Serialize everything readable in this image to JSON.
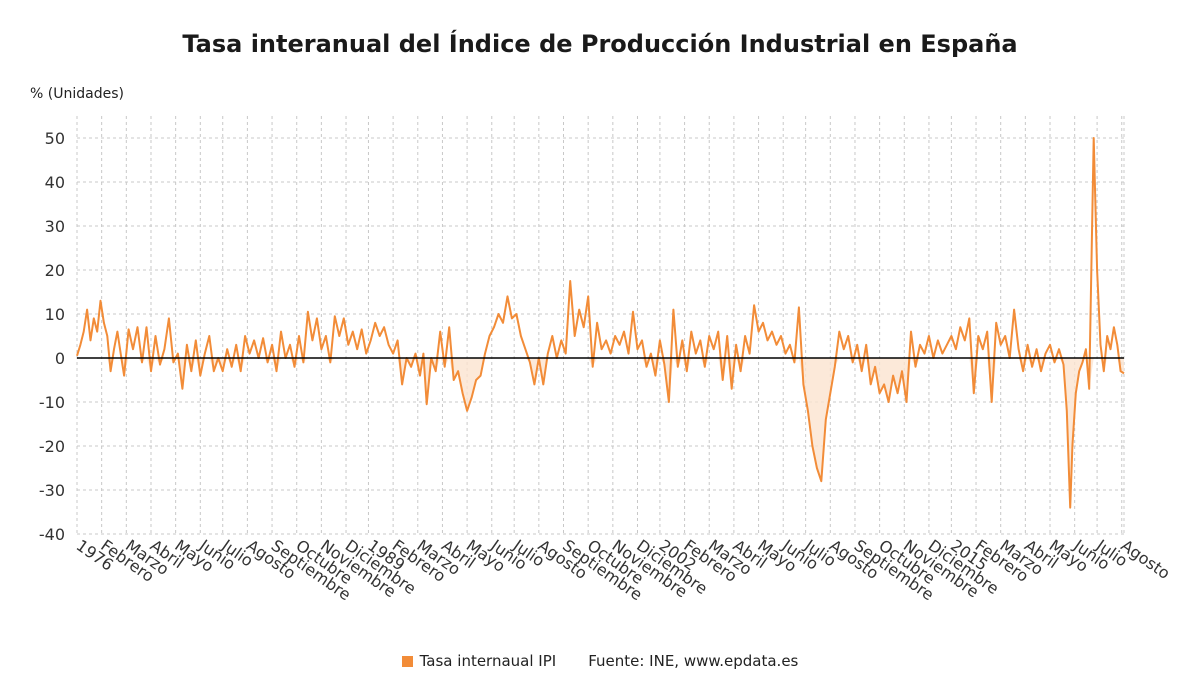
{
  "chart_data": {
    "type": "line",
    "title": "Tasa interanual del Índice de Producción Industrial en España",
    "ylabel": "% (Unidades)",
    "xlabel": "",
    "ylim": [
      -40,
      55
    ],
    "yticks": [
      50,
      40,
      30,
      20,
      10,
      0,
      -10,
      -20,
      -30,
      -40
    ],
    "xlim": [
      1976.0,
      2022.7
    ],
    "grid": true,
    "x_tick_labels": [
      {
        "x": 1976.0,
        "label": "1976"
      },
      {
        "x": 1977.1,
        "label": "Febrero"
      },
      {
        "x": 1978.2,
        "label": "Marzo"
      },
      {
        "x": 1979.3,
        "label": "Abril"
      },
      {
        "x": 1980.4,
        "label": "Mayo"
      },
      {
        "x": 1981.5,
        "label": "Junio"
      },
      {
        "x": 1982.5,
        "label": "Julio"
      },
      {
        "x": 1983.6,
        "label": "Agosto"
      },
      {
        "x": 1984.7,
        "label": "Septiembre"
      },
      {
        "x": 1985.8,
        "label": "Octubre"
      },
      {
        "x": 1986.9,
        "label": "Noviembre"
      },
      {
        "x": 1988.0,
        "label": "Diciembre"
      },
      {
        "x": 1989.0,
        "label": "1989"
      },
      {
        "x": 1990.1,
        "label": "Febrero"
      },
      {
        "x": 1991.2,
        "label": "Marzo"
      },
      {
        "x": 1992.3,
        "label": "Abril"
      },
      {
        "x": 1993.4,
        "label": "Mayo"
      },
      {
        "x": 1994.5,
        "label": "Junio"
      },
      {
        "x": 1995.5,
        "label": "Julio"
      },
      {
        "x": 1996.6,
        "label": "Agosto"
      },
      {
        "x": 1997.7,
        "label": "Septiembre"
      },
      {
        "x": 1998.8,
        "label": "Octubre"
      },
      {
        "x": 1999.9,
        "label": "Noviembre"
      },
      {
        "x": 2001.0,
        "label": "Diciembre"
      },
      {
        "x": 2002.0,
        "label": "2002"
      },
      {
        "x": 2003.1,
        "label": "Febrero"
      },
      {
        "x": 2004.2,
        "label": "Marzo"
      },
      {
        "x": 2005.3,
        "label": "Abril"
      },
      {
        "x": 2006.4,
        "label": "Mayo"
      },
      {
        "x": 2007.5,
        "label": "Junio"
      },
      {
        "x": 2008.5,
        "label": "Julio"
      },
      {
        "x": 2009.6,
        "label": "Agosto"
      },
      {
        "x": 2010.7,
        "label": "Septiembre"
      },
      {
        "x": 2011.8,
        "label": "Octubre"
      },
      {
        "x": 2012.9,
        "label": "Noviembre"
      },
      {
        "x": 2014.0,
        "label": "Diciembre"
      },
      {
        "x": 2015.0,
        "label": "2015"
      },
      {
        "x": 2016.1,
        "label": "Febrero"
      },
      {
        "x": 2017.2,
        "label": "Marzo"
      },
      {
        "x": 2018.3,
        "label": "Abril"
      },
      {
        "x": 2019.4,
        "label": "Mayo"
      },
      {
        "x": 2020.5,
        "label": "Junio"
      },
      {
        "x": 2021.5,
        "label": "Julio"
      },
      {
        "x": 2022.6,
        "label": "Agosto"
      }
    ],
    "series": [
      {
        "name": "Tasa internaual IPI",
        "color": "#f28c38",
        "points": [
          [
            1976.0,
            0.5
          ],
          [
            1976.15,
            3.0
          ],
          [
            1976.3,
            6.0
          ],
          [
            1976.45,
            11.0
          ],
          [
            1976.6,
            4.0
          ],
          [
            1976.75,
            9.0
          ],
          [
            1976.9,
            6.0
          ],
          [
            1977.05,
            13.0
          ],
          [
            1977.2,
            8.0
          ],
          [
            1977.35,
            5.0
          ],
          [
            1977.5,
            -3.0
          ],
          [
            1977.65,
            2.0
          ],
          [
            1977.8,
            6.0
          ],
          [
            1977.95,
            1.0
          ],
          [
            1978.1,
            -4.0
          ],
          [
            1978.3,
            6.5
          ],
          [
            1978.5,
            2.0
          ],
          [
            1978.7,
            7.0
          ],
          [
            1978.9,
            -1.0
          ],
          [
            1979.1,
            7.0
          ],
          [
            1979.3,
            -3.0
          ],
          [
            1979.5,
            5.0
          ],
          [
            1979.7,
            -1.5
          ],
          [
            1979.9,
            2.0
          ],
          [
            1980.1,
            9.0
          ],
          [
            1980.3,
            -1.0
          ],
          [
            1980.5,
            1.0
          ],
          [
            1980.7,
            -7.0
          ],
          [
            1980.9,
            3.0
          ],
          [
            1981.1,
            -3.0
          ],
          [
            1981.3,
            4.0
          ],
          [
            1981.5,
            -4.0
          ],
          [
            1981.7,
            1.0
          ],
          [
            1981.9,
            5.0
          ],
          [
            1982.1,
            -3.0
          ],
          [
            1982.3,
            0.0
          ],
          [
            1982.5,
            -3.0
          ],
          [
            1982.7,
            2.0
          ],
          [
            1982.9,
            -2.0
          ],
          [
            1983.1,
            3.0
          ],
          [
            1983.3,
            -3.0
          ],
          [
            1983.5,
            5.0
          ],
          [
            1983.7,
            1.0
          ],
          [
            1983.9,
            4.0
          ],
          [
            1984.1,
            0.0
          ],
          [
            1984.3,
            4.5
          ],
          [
            1984.5,
            -1.0
          ],
          [
            1984.7,
            3.0
          ],
          [
            1984.9,
            -3.0
          ],
          [
            1985.1,
            6.0
          ],
          [
            1985.3,
            0.0
          ],
          [
            1985.5,
            3.0
          ],
          [
            1985.7,
            -2.0
          ],
          [
            1985.9,
            5.0
          ],
          [
            1986.1,
            -1.0
          ],
          [
            1986.3,
            10.5
          ],
          [
            1986.5,
            4.0
          ],
          [
            1986.7,
            9.0
          ],
          [
            1986.9,
            2.0
          ],
          [
            1987.1,
            5.0
          ],
          [
            1987.3,
            -1.0
          ],
          [
            1987.5,
            9.5
          ],
          [
            1987.7,
            5.0
          ],
          [
            1987.9,
            9.0
          ],
          [
            1988.1,
            3.0
          ],
          [
            1988.3,
            6.0
          ],
          [
            1988.5,
            2.0
          ],
          [
            1988.7,
            6.5
          ],
          [
            1988.9,
            1.0
          ],
          [
            1989.1,
            4.0
          ],
          [
            1989.3,
            8.0
          ],
          [
            1989.5,
            5.0
          ],
          [
            1989.7,
            7.0
          ],
          [
            1989.9,
            3.0
          ],
          [
            1990.1,
            1.0
          ],
          [
            1990.3,
            4.0
          ],
          [
            1990.5,
            -6.0
          ],
          [
            1990.7,
            0.0
          ],
          [
            1990.9,
            -2.0
          ],
          [
            1991.1,
            1.0
          ],
          [
            1991.3,
            -4.0
          ],
          [
            1991.45,
            1.0
          ],
          [
            1991.6,
            -10.5
          ],
          [
            1991.8,
            0.0
          ],
          [
            1992.0,
            -3.0
          ],
          [
            1992.2,
            6.0
          ],
          [
            1992.4,
            -2.0
          ],
          [
            1992.6,
            7.0
          ],
          [
            1992.8,
            -5.0
          ],
          [
            1993.0,
            -3.0
          ],
          [
            1993.2,
            -8.0
          ],
          [
            1993.4,
            -12.0
          ],
          [
            1993.6,
            -9.0
          ],
          [
            1993.8,
            -5.0
          ],
          [
            1994.0,
            -4.0
          ],
          [
            1994.2,
            1.0
          ],
          [
            1994.4,
            5.0
          ],
          [
            1994.6,
            7.0
          ],
          [
            1994.8,
            10.0
          ],
          [
            1995.0,
            8.0
          ],
          [
            1995.2,
            14.0
          ],
          [
            1995.4,
            9.0
          ],
          [
            1995.6,
            10.0
          ],
          [
            1995.8,
            5.0
          ],
          [
            1996.0,
            2.0
          ],
          [
            1996.2,
            -1.0
          ],
          [
            1996.4,
            -6.0
          ],
          [
            1996.6,
            0.0
          ],
          [
            1996.8,
            -6.0
          ],
          [
            1997.0,
            1.0
          ],
          [
            1997.2,
            5.0
          ],
          [
            1997.4,
            0.0
          ],
          [
            1997.6,
            4.0
          ],
          [
            1997.8,
            1.0
          ],
          [
            1998.0,
            17.5
          ],
          [
            1998.2,
            5.0
          ],
          [
            1998.4,
            11.0
          ],
          [
            1998.6,
            7.0
          ],
          [
            1998.8,
            14.0
          ],
          [
            1999.0,
            -2.0
          ],
          [
            1999.2,
            8.0
          ],
          [
            1999.4,
            2.0
          ],
          [
            1999.6,
            4.0
          ],
          [
            1999.8,
            1.0
          ],
          [
            2000.0,
            5.0
          ],
          [
            2000.2,
            3.0
          ],
          [
            2000.4,
            6.0
          ],
          [
            2000.6,
            1.0
          ],
          [
            2000.8,
            10.5
          ],
          [
            2001.0,
            2.0
          ],
          [
            2001.2,
            4.0
          ],
          [
            2001.4,
            -2.0
          ],
          [
            2001.6,
            1.0
          ],
          [
            2001.8,
            -4.0
          ],
          [
            2002.0,
            4.0
          ],
          [
            2002.2,
            -1.5
          ],
          [
            2002.4,
            -10.0
          ],
          [
            2002.6,
            11.0
          ],
          [
            2002.8,
            -2.0
          ],
          [
            2003.0,
            4.0
          ],
          [
            2003.2,
            -3.0
          ],
          [
            2003.4,
            6.0
          ],
          [
            2003.6,
            1.0
          ],
          [
            2003.8,
            4.0
          ],
          [
            2004.0,
            -2.0
          ],
          [
            2004.2,
            5.0
          ],
          [
            2004.4,
            2.0
          ],
          [
            2004.6,
            6.0
          ],
          [
            2004.8,
            -5.0
          ],
          [
            2005.0,
            5.0
          ],
          [
            2005.2,
            -7.0
          ],
          [
            2005.4,
            3.0
          ],
          [
            2005.6,
            -3.0
          ],
          [
            2005.8,
            5.0
          ],
          [
            2006.0,
            1.0
          ],
          [
            2006.2,
            12.0
          ],
          [
            2006.4,
            6.0
          ],
          [
            2006.6,
            8.0
          ],
          [
            2006.8,
            4.0
          ],
          [
            2007.0,
            6.0
          ],
          [
            2007.2,
            3.0
          ],
          [
            2007.4,
            5.0
          ],
          [
            2007.6,
            1.0
          ],
          [
            2007.8,
            3.0
          ],
          [
            2008.0,
            -1.0
          ],
          [
            2008.2,
            11.5
          ],
          [
            2008.4,
            -6.0
          ],
          [
            2008.6,
            -12.0
          ],
          [
            2008.8,
            -20.0
          ],
          [
            2009.0,
            -25.0
          ],
          [
            2009.2,
            -28.0
          ],
          [
            2009.4,
            -14.0
          ],
          [
            2009.6,
            -8.0
          ],
          [
            2009.8,
            -2.0
          ],
          [
            2010.0,
            6.0
          ],
          [
            2010.2,
            2.0
          ],
          [
            2010.4,
            5.0
          ],
          [
            2010.6,
            -1.0
          ],
          [
            2010.8,
            3.0
          ],
          [
            2011.0,
            -3.0
          ],
          [
            2011.2,
            3.0
          ],
          [
            2011.4,
            -6.0
          ],
          [
            2011.6,
            -2.0
          ],
          [
            2011.8,
            -8.0
          ],
          [
            2012.0,
            -6.0
          ],
          [
            2012.2,
            -10.0
          ],
          [
            2012.4,
            -4.0
          ],
          [
            2012.6,
            -8.0
          ],
          [
            2012.8,
            -3.0
          ],
          [
            2013.0,
            -10.0
          ],
          [
            2013.2,
            6.0
          ],
          [
            2013.4,
            -2.0
          ],
          [
            2013.6,
            3.0
          ],
          [
            2013.8,
            1.0
          ],
          [
            2014.0,
            5.0
          ],
          [
            2014.2,
            0.0
          ],
          [
            2014.4,
            4.0
          ],
          [
            2014.6,
            1.0
          ],
          [
            2014.8,
            3.0
          ],
          [
            2015.0,
            5.0
          ],
          [
            2015.2,
            2.0
          ],
          [
            2015.4,
            7.0
          ],
          [
            2015.6,
            4.0
          ],
          [
            2015.8,
            9.0
          ],
          [
            2016.0,
            -8.0
          ],
          [
            2016.2,
            5.0
          ],
          [
            2016.4,
            2.0
          ],
          [
            2016.6,
            6.0
          ],
          [
            2016.8,
            -10.0
          ],
          [
            2017.0,
            8.0
          ],
          [
            2017.2,
            3.0
          ],
          [
            2017.4,
            5.0
          ],
          [
            2017.6,
            0.0
          ],
          [
            2017.8,
            11.0
          ],
          [
            2018.0,
            2.0
          ],
          [
            2018.2,
            -3.0
          ],
          [
            2018.4,
            3.0
          ],
          [
            2018.6,
            -2.0
          ],
          [
            2018.8,
            2.0
          ],
          [
            2019.0,
            -3.0
          ],
          [
            2019.2,
            1.0
          ],
          [
            2019.4,
            3.0
          ],
          [
            2019.6,
            -1.0
          ],
          [
            2019.8,
            2.0
          ],
          [
            2020.0,
            -1.5
          ],
          [
            2020.15,
            -12.0
          ],
          [
            2020.3,
            -34.0
          ],
          [
            2020.4,
            -20.0
          ],
          [
            2020.55,
            -8.0
          ],
          [
            2020.7,
            -3.0
          ],
          [
            2020.85,
            -1.0
          ],
          [
            2021.0,
            2.0
          ],
          [
            2021.15,
            -7.0
          ],
          [
            2021.35,
            50.0
          ],
          [
            2021.5,
            20.0
          ],
          [
            2021.65,
            3.0
          ],
          [
            2021.8,
            -3.0
          ],
          [
            2021.95,
            5.0
          ],
          [
            2022.1,
            2.0
          ],
          [
            2022.25,
            7.0
          ],
          [
            2022.4,
            3.0
          ],
          [
            2022.55,
            -3.0
          ],
          [
            2022.7,
            -3.5
          ]
        ]
      }
    ]
  },
  "legend": {
    "series_label": "Tasa internaual IPI",
    "source": "Fuente: INE, www.epdata.es"
  },
  "colors": {
    "line": "#f28c38",
    "fill": "#fbe3d0",
    "grid": "#c8c8c8",
    "zero_line": "#000000"
  }
}
